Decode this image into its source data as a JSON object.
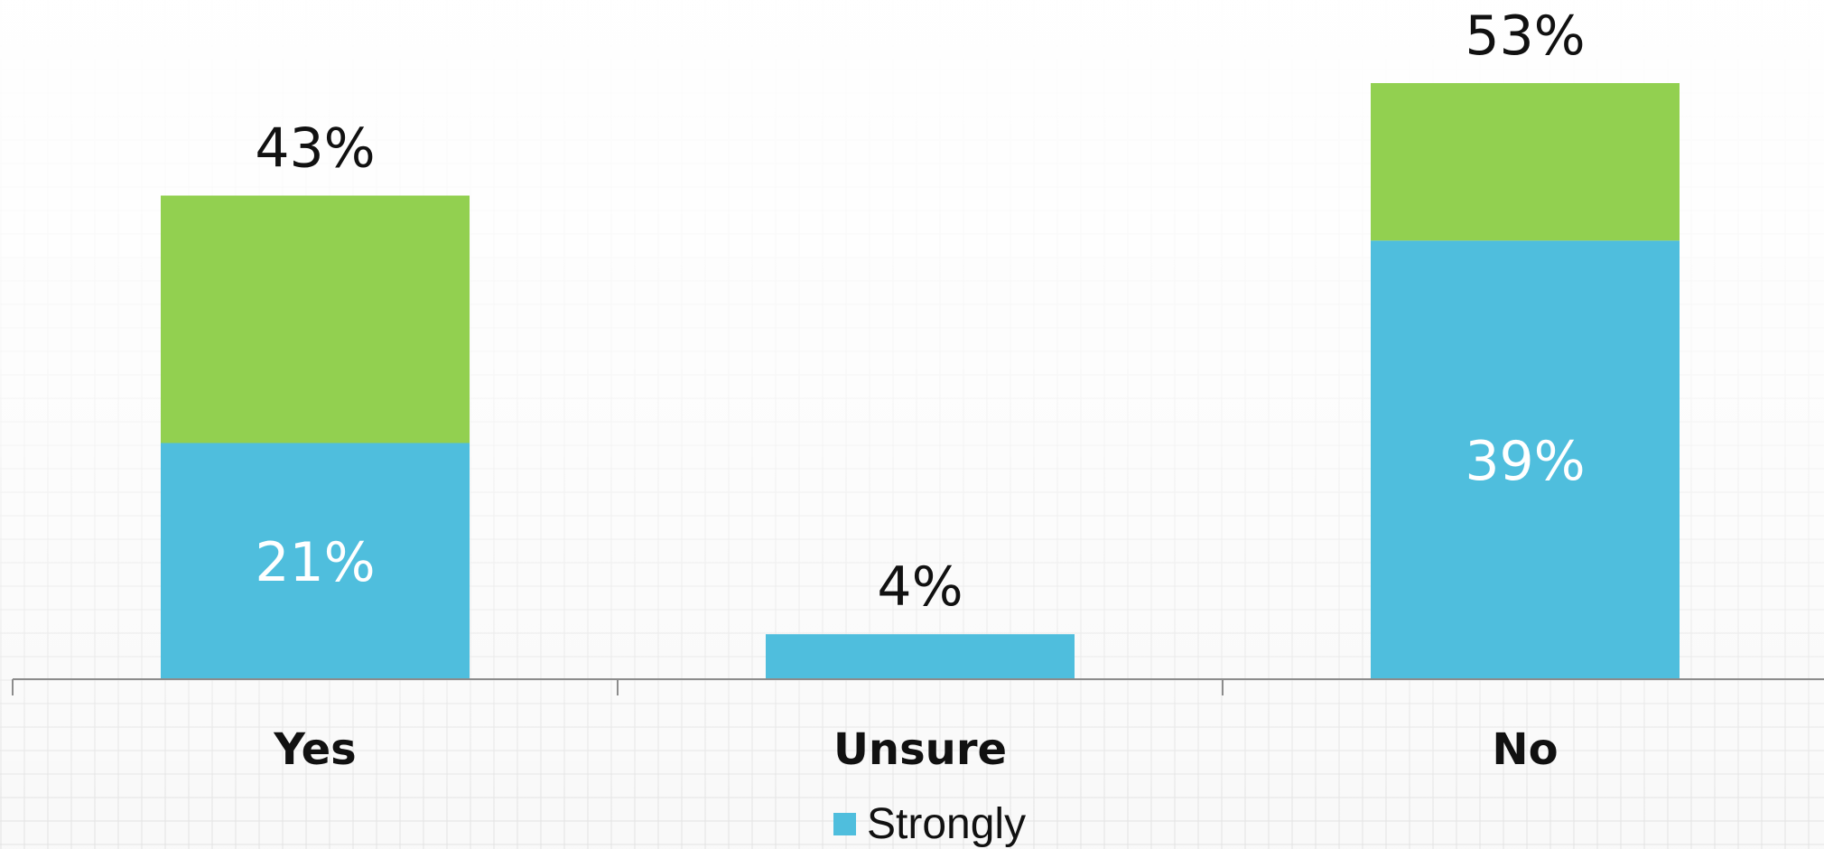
{
  "chart_data": {
    "type": "bar",
    "stacked": true,
    "categories": [
      "Yes",
      "Unsure",
      "No"
    ],
    "series": [
      {
        "name": "Strongly",
        "values": [
          21,
          4,
          39
        ],
        "color": "#4FBEDD",
        "labels": [
          "21%",
          "",
          "39%"
        ]
      },
      {
        "values": [
          22,
          0,
          14
        ],
        "color": "#92D050"
      }
    ],
    "totals": [
      43,
      4,
      53
    ],
    "total_labels": [
      "43%",
      "4%",
      "53%"
    ],
    "title": "",
    "xlabel": "",
    "ylabel": "",
    "ylim": [
      0,
      55
    ],
    "grid": false,
    "legend_position": "bottom"
  }
}
